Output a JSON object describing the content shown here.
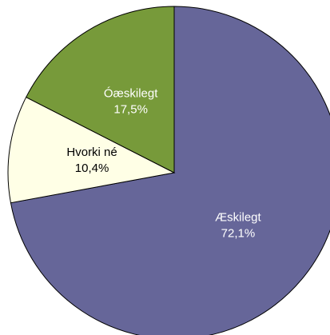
{
  "chart_data": {
    "type": "pie",
    "categories": [
      "Æskilegt",
      "Hvorki né",
      "Óæskilegt"
    ],
    "values": [
      72.1,
      10.4,
      17.5
    ],
    "value_labels": [
      "72,1%",
      "10,4%",
      "17,5%"
    ],
    "colors": [
      "#666699",
      "#ffffe6",
      "#779a3a"
    ],
    "label_colors": [
      "#ffffff",
      "#000000",
      "#ffffff"
    ]
  }
}
